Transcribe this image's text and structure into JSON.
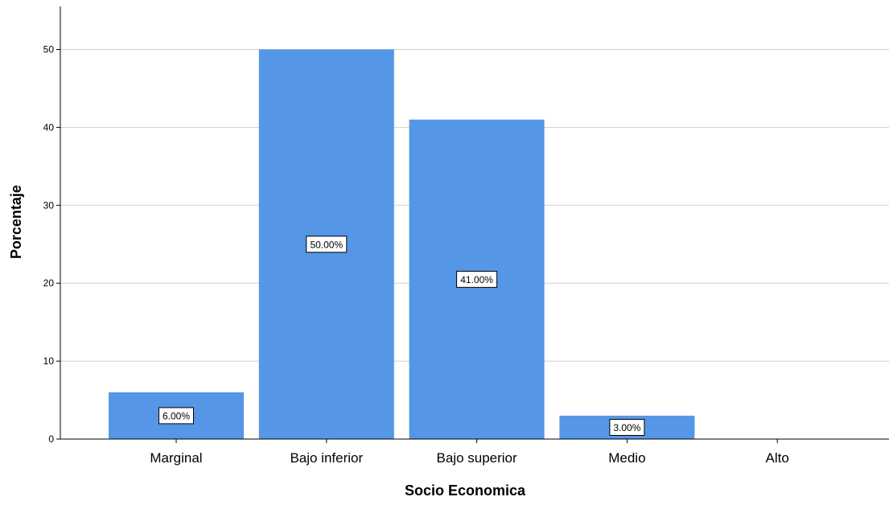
{
  "chart_data": {
    "type": "bar",
    "xlabel": "Socio Economica",
    "ylabel": "Porcentaje",
    "categories": [
      "Marginal",
      "Bajo inferior",
      "Bajo superior",
      "Medio",
      "Alto"
    ],
    "values": [
      6,
      50,
      41,
      3,
      0
    ],
    "data_labels": [
      "6.00%",
      "50.00%",
      "41.00%",
      "3.00%",
      ""
    ],
    "ylim": [
      0,
      55
    ],
    "yticks": [
      0,
      10,
      20,
      30,
      40,
      50
    ],
    "grid": true,
    "legend": "none",
    "colors": {
      "bar": "#5596e6",
      "grid": "#d0d0d0",
      "axis": "#000000",
      "label_box_fill": "#ffffff",
      "label_box_stroke": "#000000"
    }
  }
}
